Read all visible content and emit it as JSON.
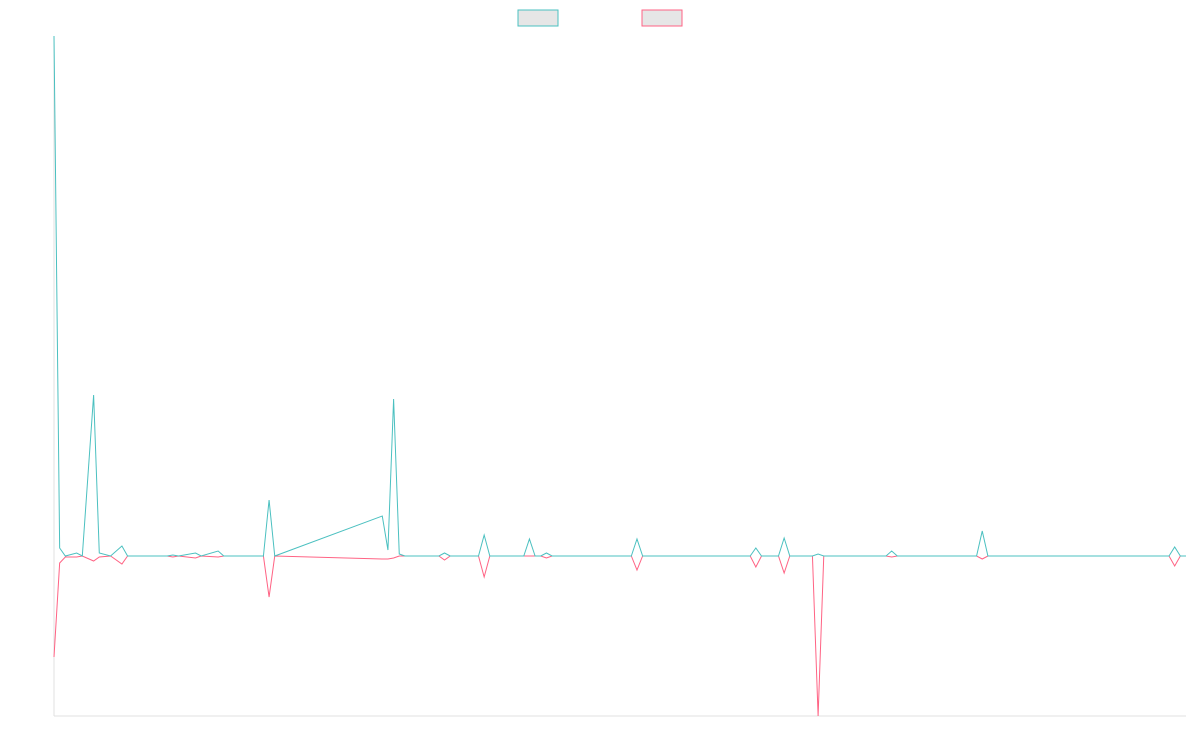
{
  "chart_data": {
    "type": "line",
    "x": [
      0,
      1,
      2,
      4,
      5,
      7,
      8,
      10,
      12,
      13,
      20,
      21,
      22,
      25,
      26,
      29,
      30,
      37,
      38,
      39,
      58,
      59,
      60,
      61,
      62,
      68,
      69,
      70,
      75,
      76,
      77,
      83,
      84,
      85,
      86,
      87,
      88,
      102,
      103,
      104,
      123,
      124,
      125,
      128,
      129,
      130,
      134,
      135,
      136,
      147,
      148,
      149,
      163,
      164,
      165,
      197,
      198,
      199,
      200
    ],
    "series": [
      {
        "color": "#4bc0c0",
        "values": [
          520,
          8,
          0,
          3,
          0,
          161,
          3,
          0,
          10,
          0,
          0,
          1,
          0,
          3,
          0,
          5,
          0,
          0,
          56,
          0,
          40,
          6,
          157,
          2,
          0,
          0,
          3,
          0,
          0,
          21,
          0,
          0,
          17,
          0,
          0,
          3,
          0,
          0,
          17,
          0,
          0,
          8,
          0,
          0,
          18,
          0,
          0,
          2,
          0,
          0,
          5,
          0,
          0,
          25,
          0,
          0,
          9,
          0,
          0
        ]
      },
      {
        "color": "#ff6384",
        "values": [
          -101,
          -7,
          -1,
          -1,
          0,
          -5,
          -1,
          0,
          -8,
          0,
          0,
          -1,
          0,
          -2,
          0,
          -1,
          0,
          0,
          -41,
          0,
          -3,
          -3,
          -2,
          0,
          0,
          0,
          -4,
          0,
          0,
          -21,
          0,
          0,
          0,
          0,
          0,
          -2,
          0,
          0,
          -14,
          0,
          0,
          -11,
          0,
          0,
          -17,
          0,
          0,
          -160,
          0,
          0,
          -1,
          0,
          0,
          -3,
          0,
          0,
          -10,
          0,
          0
        ]
      }
    ],
    "xlim": [
      0,
      200
    ],
    "ylim": [
      -160,
      520
    ]
  }
}
